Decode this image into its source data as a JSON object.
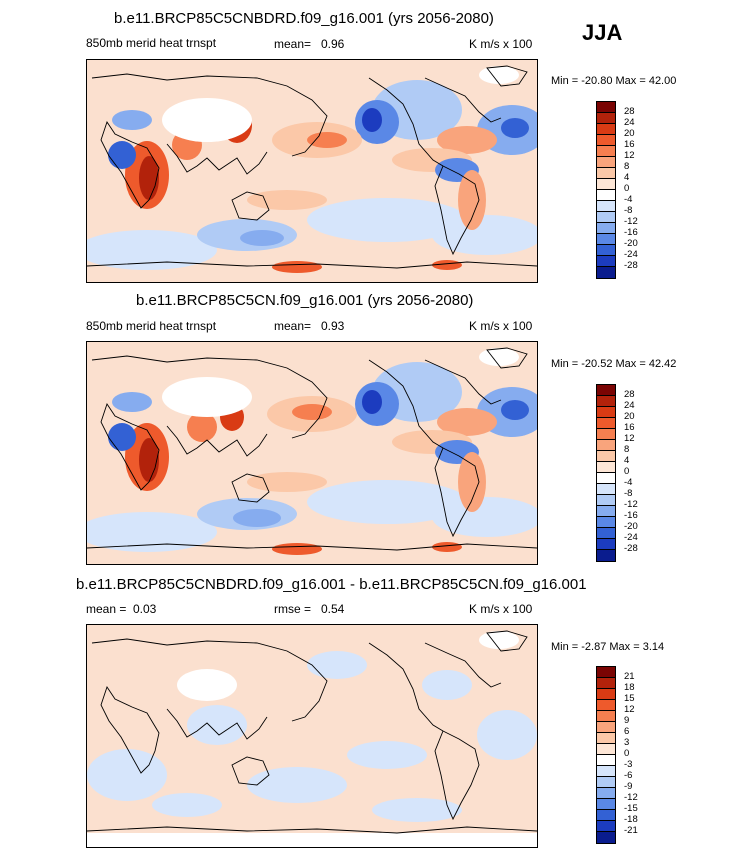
{
  "season": "JJA",
  "panels": [
    {
      "title": "b.e11.BRCP85C5CNBDRD.f09_g16.001 (yrs 2056-2080)",
      "left_label": "850mb merid heat trnspt",
      "center_label": "mean=",
      "center_value": "0.96",
      "units": "K m/s x 100",
      "minmax": "Min = -20.80 Max =  42.00",
      "colorbar_levels": [
        "28",
        "24",
        "20",
        "16",
        "12",
        "8",
        "4",
        "0",
        "-4",
        "-8",
        "-12",
        "-16",
        "-20",
        "-24",
        "-28"
      ],
      "colorbar_colors": [
        "#7a0403",
        "#b2220b",
        "#d93b14",
        "#ee5a2c",
        "#f67f50",
        "#f9a47c",
        "#fbc8a8",
        "#fde6d6",
        "#ffffff",
        "#d6e5fb",
        "#b0cbf5",
        "#86acef",
        "#5a88e6",
        "#3361d4",
        "#1c3cbf",
        "#0a1c8e"
      ]
    },
    {
      "title": "b.e11.BRCP85C5CN.f09_g16.001 (yrs 2056-2080)",
      "left_label": "850mb merid heat trnspt",
      "center_label": "mean=",
      "center_value": "0.93",
      "units": "K m/s x 100",
      "minmax": "Min = -20.52 Max =  42.42",
      "colorbar_levels": [
        "28",
        "24",
        "20",
        "16",
        "12",
        "8",
        "4",
        "0",
        "-4",
        "-8",
        "-12",
        "-16",
        "-20",
        "-24",
        "-28"
      ],
      "colorbar_colors": [
        "#7a0403",
        "#b2220b",
        "#d93b14",
        "#ee5a2c",
        "#f67f50",
        "#f9a47c",
        "#fbc8a8",
        "#fde6d6",
        "#ffffff",
        "#d6e5fb",
        "#b0cbf5",
        "#86acef",
        "#5a88e6",
        "#3361d4",
        "#1c3cbf",
        "#0a1c8e"
      ]
    },
    {
      "title": "b.e11.BRCP85C5CNBDRD.f09_g16.001 - b.e11.BRCP85C5CN.f09_g16.001",
      "left_label": "mean =",
      "left_value": "0.03",
      "center_label": "rmse =",
      "center_value": "0.54",
      "units": "K m/s x 100",
      "minmax": "Min =  -2.87 Max =   3.14",
      "colorbar_levels": [
        "21",
        "18",
        "15",
        "12",
        "9",
        "6",
        "3",
        "0",
        "-3",
        "-6",
        "-9",
        "-12",
        "-15",
        "-18",
        "-21"
      ],
      "colorbar_colors": [
        "#7a0403",
        "#b2220b",
        "#d93b14",
        "#ee5a2c",
        "#f67f50",
        "#f9a47c",
        "#fbc8a8",
        "#fde6d6",
        "#ffffff",
        "#d6e5fb",
        "#b0cbf5",
        "#86acef",
        "#5a88e6",
        "#3361d4",
        "#1c3cbf",
        "#0a1c8e"
      ]
    }
  ]
}
